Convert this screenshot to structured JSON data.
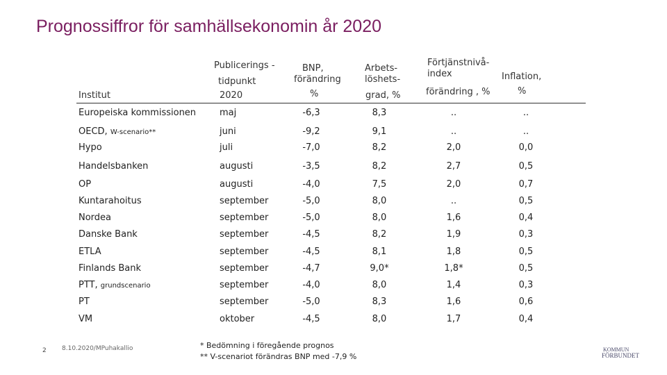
{
  "title": "Prognossiffror för samhällsekonomin år 2020",
  "headers": {
    "institut": "Institut",
    "publicering_1": "Publicerings -",
    "publicering_2": "tidpunkt",
    "publicering_3": "2020",
    "bnp_1": "BNP,",
    "bnp_2": "förändring",
    "bnp_3": "%",
    "arbets_1": "Arbets-",
    "arbets_2": "löshets-",
    "arbets_3": "grad, %",
    "fortj_1": "Förtjänstnivå-",
    "fortj_2": "index",
    "fortj_3": "förändring , %",
    "infl_1": "Inflation,",
    "infl_2": "%"
  },
  "rows": [
    {
      "institut": "Europeiska kommissionen",
      "suffix": "",
      "tid": "maj",
      "bnp": "-6,3",
      "arb": "8,3",
      "fortj": "..",
      "infl": ".."
    },
    {
      "institut": "OECD, ",
      "suffix": "W-scenario**",
      "tid": "juni",
      "bnp": "-9,2",
      "arb": "9,1",
      "fortj": "..",
      "infl": ".."
    },
    {
      "institut": "Hypo",
      "suffix": "",
      "tid": "juli",
      "bnp": "-7,0",
      "arb": "8,2",
      "fortj": "2,0",
      "infl": "0,0"
    },
    {
      "institut": "Handelsbanken",
      "suffix": "",
      "tid": "augusti",
      "bnp": "-3,5",
      "arb": "8,2",
      "fortj": "2,7",
      "infl": "0,5"
    },
    {
      "institut": "OP",
      "suffix": "",
      "tid": "augusti",
      "bnp": "-4,0",
      "arb": "7,5",
      "fortj": "2,0",
      "infl": "0,7"
    },
    {
      "institut": "Kuntarahoitus",
      "suffix": "",
      "tid": "september",
      "bnp": "-5,0",
      "arb": "8,0",
      "fortj": "..",
      "infl": "0,5"
    },
    {
      "institut": "Nordea",
      "suffix": "",
      "tid": "september",
      "bnp": "-5,0",
      "arb": "8,0",
      "fortj": "1,6",
      "infl": "0,4"
    },
    {
      "institut": "Danske Bank",
      "suffix": "",
      "tid": "september",
      "bnp": "-4,5",
      "arb": "8,2",
      "fortj": "1,9",
      "infl": "0,3"
    },
    {
      "institut": "ETLA",
      "suffix": "",
      "tid": "september",
      "bnp": "-4,5",
      "arb": "8,1",
      "fortj": "1,8",
      "infl": "0,5"
    },
    {
      "institut": "Finlands Bank",
      "suffix": "",
      "tid": "september",
      "bnp": "-4,7",
      "arb": "9,0*",
      "fortj": "1,8*",
      "infl": "0,5"
    },
    {
      "institut": "PTT, ",
      "suffix": "grundscenario",
      "tid": "september",
      "bnp": "-4,0",
      "arb": "8,0",
      "fortj": "1,4",
      "infl": "0,3"
    },
    {
      "institut": "PT",
      "suffix": "",
      "tid": "september",
      "bnp": "-5,0",
      "arb": "8,3",
      "fortj": "1,6",
      "infl": "0,6"
    },
    {
      "institut": "VM",
      "suffix": "",
      "tid": "oktober",
      "bnp": "-4,5",
      "arb": "8,0",
      "fortj": "1,7",
      "infl": "0,4"
    }
  ],
  "footnotes": {
    "note1": "*  Bedömning i föregående prognos",
    "note2": "**  V-scenariot förändras BNP med -7,9 %"
  },
  "footer": {
    "page_number": "2",
    "date_author": "8.10.2020/MPuhakallio"
  },
  "logo": {
    "line1": "KOMMUN",
    "line2": "FÖRBUNDET",
    "color": "#4a4a6a"
  },
  "colors": {
    "title": "#7a1e60"
  }
}
